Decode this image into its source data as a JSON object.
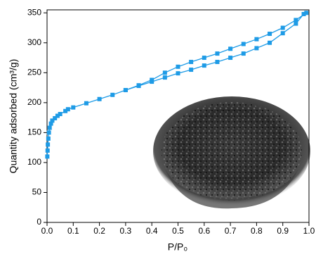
{
  "chart_data": {
    "type": "line",
    "x_label": "P/P₀",
    "y_label": "Quantity adsorbed (cm³/g)",
    "xlim": [
      0,
      1
    ],
    "ylim": [
      0,
      355
    ],
    "xticks": [
      {
        "value": 0,
        "label": "0.0"
      },
      0.1,
      0.2,
      0.3,
      0.4,
      0.5,
      0.6,
      0.7,
      0.8,
      0.9,
      {
        "value": 1,
        "label": "1.0"
      }
    ],
    "yticks": [
      0,
      50,
      100,
      150,
      200,
      250,
      300,
      350
    ],
    "series": [
      {
        "color": "#1e9be6",
        "x": [
          0.001,
          0.002,
          0.003,
          0.005,
          0.007,
          0.01,
          0.015,
          0.02,
          0.03,
          0.04,
          0.05,
          0.07,
          0.08,
          0.1,
          0.15,
          0.2,
          0.25,
          0.3,
          0.35,
          0.4,
          0.45,
          0.5,
          0.55,
          0.6,
          0.65,
          0.7,
          0.75,
          0.8,
          0.85,
          0.9,
          0.95,
          0.98
        ],
        "values": [
          110,
          120,
          130,
          140,
          150,
          158,
          165,
          170,
          174,
          178,
          181,
          186,
          189,
          192,
          199,
          206,
          213,
          221,
          228,
          235,
          242,
          249,
          255,
          262,
          268,
          275,
          282,
          291,
          300,
          316,
          332,
          348
        ]
      },
      {
        "color": "#1e9be6",
        "x": [
          0.99,
          0.95,
          0.9,
          0.85,
          0.8,
          0.75,
          0.7,
          0.65,
          0.6,
          0.55,
          0.5,
          0.45,
          0.4,
          0.35,
          0.3
        ],
        "values": [
          350,
          338,
          325,
          315,
          306,
          298,
          290,
          282,
          275,
          268,
          260,
          250,
          238,
          229,
          221
        ]
      }
    ]
  }
}
